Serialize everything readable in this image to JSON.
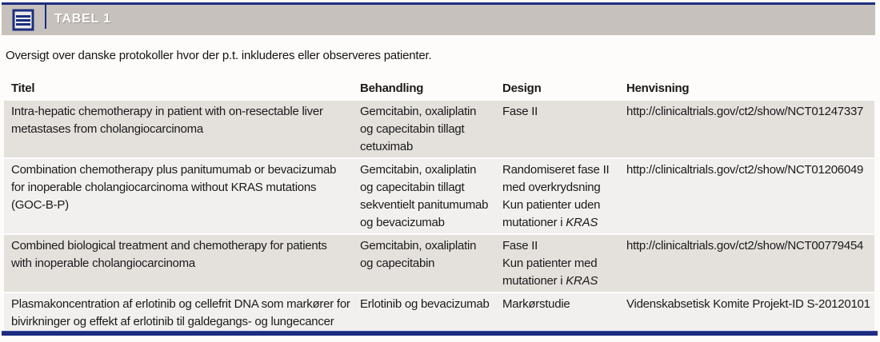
{
  "header": {
    "title": "TABEL 1"
  },
  "caption": "Oversigt over danske protokoller hvor der p.t. inkluderes eller observeres patienter.",
  "colors": {
    "navy": "#1c2d80",
    "header_bar": "#c6c1bc",
    "row_dark": "#e4e1dd",
    "row_light": "#f2f0ee",
    "title_text": "#ffffff"
  },
  "table": {
    "columns": [
      {
        "key": "titel",
        "label": "Titel"
      },
      {
        "key": "behandling",
        "label": "Behandling"
      },
      {
        "key": "design",
        "label": "Design"
      },
      {
        "key": "henvisning",
        "label": "Henvisning"
      }
    ],
    "rows": [
      {
        "titel": [
          "Intra-hepatic chemotherapy in patient with on-resectable liver",
          "metastases from cholangiocarcinoma"
        ],
        "behandling": [
          "Gemcitabin, oxaliplatin",
          "og capecitabin tillagt",
          "cetuximab"
        ],
        "design": [
          "Fase II"
        ],
        "henvisning": [
          "http://clinicaltrials.gov/ct2/show/NCT01247337"
        ]
      },
      {
        "titel": [
          "Combination chemotherapy plus panitumumab or bevacizumab",
          "for inoperable cholangiocarcinoma without KRAS mutations",
          "(GOC-B-P)"
        ],
        "behandling": [
          "Gemcitabin, oxaliplatin",
          "og capecitabin tillagt",
          "sekventielt panitumumab",
          "og bevacizumab"
        ],
        "design": [
          "Randomiseret fase II",
          "med overkrydsning",
          "Kun patienter uden",
          "mutationer i *KRAS*"
        ],
        "henvisning": [
          "http://clinicaltrials.gov/ct2/show/NCT01206049"
        ]
      },
      {
        "titel": [
          "Combined biological treatment and chemotherapy for patients",
          "with inoperable cholangiocarcinoma"
        ],
        "behandling": [
          "Gemcitabin, oxaliplatin",
          "og capecitabin"
        ],
        "design": [
          "Fase II",
          "Kun patienter med",
          "mutationer i *KRAS*"
        ],
        "henvisning": [
          "http://clinicaltrials.gov/ct2/show/NCT00779454"
        ]
      },
      {
        "titel": [
          "Plasmakoncentration af erlotinib og cellefrit DNA som markører for",
          "bivirkninger og effekt af erlotinib til galdegangs- og lungecancer"
        ],
        "behandling": [
          "Erlotinib og bevacizumab"
        ],
        "design": [
          "Markørstudie"
        ],
        "henvisning": [
          "Videnskabsetisk Komite Projekt-ID S-20120101"
        ]
      }
    ]
  }
}
